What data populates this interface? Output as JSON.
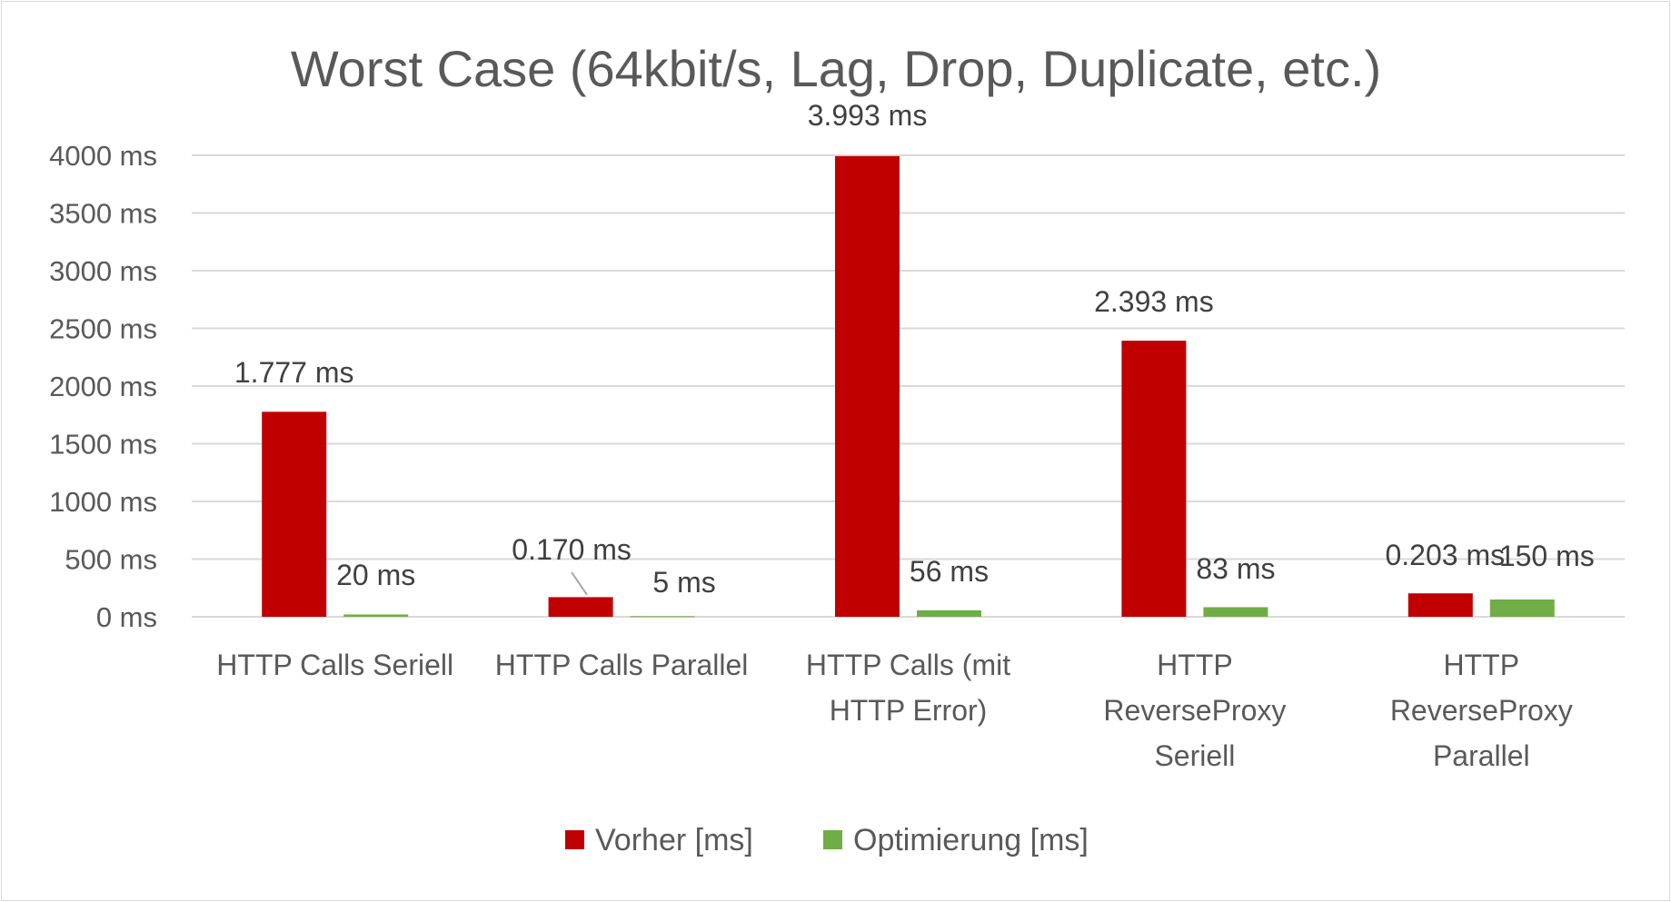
{
  "chart_data": {
    "type": "bar",
    "title": "Worst Case (64kbit/s, Lag, Drop, Duplicate, etc.)",
    "xlabel": "",
    "ylabel": "",
    "ylim": [
      0,
      4000
    ],
    "yticks": [
      0,
      500,
      1000,
      1500,
      2000,
      2500,
      3000,
      3500,
      4000
    ],
    "ytick_labels": [
      "0 ms",
      "500 ms",
      "1000 ms",
      "1500 ms",
      "2000 ms",
      "2500 ms",
      "3000 ms",
      "3500 ms",
      "4000 ms"
    ],
    "categories": [
      [
        "HTTP Calls Seriell"
      ],
      [
        "HTTP Calls Parallel"
      ],
      [
        "HTTP Calls (mit",
        "HTTP Error)"
      ],
      [
        "HTTP",
        "ReverseProxy",
        "Seriell"
      ],
      [
        "HTTP",
        "ReverseProxy",
        "Parallel"
      ]
    ],
    "series": [
      {
        "name": "Vorher [ms]",
        "color": "#c00000",
        "values": [
          1777,
          170,
          3993,
          2393,
          203
        ],
        "labels": [
          "1.777 ms",
          "0.170 ms",
          "3.993 ms",
          "2.393 ms",
          "0.203 ms"
        ]
      },
      {
        "name": "Optimierung [ms]",
        "color": "#70ad47",
        "values": [
          20,
          5,
          56,
          83,
          150
        ],
        "labels": [
          "20 ms",
          "5 ms",
          "56 ms",
          "83 ms",
          "150 ms"
        ]
      }
    ],
    "grid": true,
    "legend_position": "bottom",
    "gridline_color": "#d9d9d9"
  }
}
